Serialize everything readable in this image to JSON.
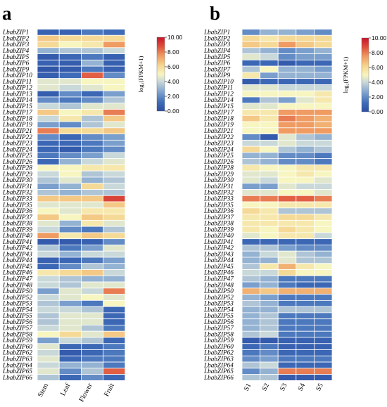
{
  "chart_data": [
    {
      "type": "heatmap",
      "panel_label": "a",
      "columns": [
        "Stem",
        "Leaf",
        "Flower",
        "Fruit"
      ],
      "rows": [
        "LbabZIP1",
        "LbabZIP2",
        "LbabZIP3",
        "LbabZIP4",
        "LbabZIP5",
        "LbabZIP6",
        "LbabZIP9",
        "LbabZIP10",
        "LbabZIP11",
        "LbabZIP12",
        "LbabZIP13",
        "LbabZIP14",
        "LbabZIP15",
        "LbabZIP17",
        "LbabZIP18",
        "LbabZIP19",
        "LbabZIP21",
        "LbabZIP22",
        "LbabZIP23",
        "LbabZIP24",
        "LbabZIP25",
        "LbabZIP26",
        "LbabZIP28",
        "LbabZIP29",
        "LbabZIP30",
        "LbabZIP31",
        "LbabZIP32",
        "LbabZIP33",
        "LbabZIP35",
        "LbabZIP36",
        "LbabZIP37",
        "LbabZIP38",
        "LbabZIP39",
        "LbabZIP40",
        "LbabZIP41",
        "LbabZIP42",
        "LbabZIP43",
        "LbabZIP44",
        "LbabZIP45",
        "LbabZIP46",
        "LbabZIP47",
        "LbabZIP48",
        "LbabZIP50",
        "LbabZIP52",
        "LbabZIP53",
        "LbabZIP54",
        "LbabZIP55",
        "LbabZIP56",
        "LbabZIP57",
        "LbabZIP58",
        "LbabZIP59",
        "LbabZIP60",
        "LbabZIP62",
        "LbabZIP63",
        "LbabZIP64",
        "LbabZIP65",
        "LbabZIP66"
      ],
      "values": [
        [
          0.8,
          0.8,
          1.5,
          1.2
        ],
        [
          6.5,
          6.0,
          6.0,
          6.0
        ],
        [
          6.0,
          5.0,
          5.5,
          7.5
        ],
        [
          3.0,
          3.5,
          3.5,
          4.0
        ],
        [
          0.5,
          1.0,
          1.5,
          0.8
        ],
        [
          0.8,
          0.6,
          3.0,
          0.7
        ],
        [
          0.3,
          0.5,
          1.5,
          0.8
        ],
        [
          0.6,
          1.2,
          8.5,
          2.0
        ],
        [
          4.5,
          4.5,
          5.0,
          5.0
        ],
        [
          4.5,
          4.0,
          4.5,
          5.0
        ],
        [
          0.6,
          2.0,
          1.0,
          2.5
        ],
        [
          2.0,
          1.5,
          2.0,
          3.5
        ],
        [
          4.0,
          3.5,
          4.5,
          4.5
        ],
        [
          6.5,
          5.0,
          5.5,
          8.0
        ],
        [
          4.0,
          5.5,
          3.5,
          6.5
        ],
        [
          2.5,
          2.0,
          3.5,
          4.5
        ],
        [
          8.0,
          6.0,
          6.0,
          6.5
        ],
        [
          2.0,
          1.0,
          2.0,
          2.5
        ],
        [
          1.0,
          1.0,
          1.5,
          2.5
        ],
        [
          1.0,
          0.5,
          1.5,
          2.0
        ],
        [
          1.5,
          2.0,
          2.5,
          4.0
        ],
        [
          1.0,
          3.0,
          4.0,
          4.5
        ],
        [
          5.0,
          5.0,
          5.5,
          5.5
        ],
        [
          4.0,
          5.0,
          3.5,
          4.0
        ],
        [
          3.5,
          4.5,
          3.0,
          3.5
        ],
        [
          2.5,
          3.0,
          6.0,
          4.0
        ],
        [
          3.5,
          3.0,
          3.5,
          3.5
        ],
        [
          6.5,
          6.5,
          6.5,
          9.0
        ],
        [
          4.5,
          4.5,
          4.5,
          6.5
        ],
        [
          5.0,
          4.5,
          5.5,
          5.5
        ],
        [
          6.5,
          5.0,
          6.5,
          6.0
        ],
        [
          4.5,
          3.0,
          5.5,
          4.5
        ],
        [
          4.0,
          2.0,
          1.5,
          3.5
        ],
        [
          7.5,
          5.5,
          6.5,
          6.0
        ],
        [
          0.5,
          0.5,
          0.8,
          2.0
        ],
        [
          3.5,
          1.5,
          2.5,
          4.5
        ],
        [
          4.0,
          3.0,
          4.0,
          4.0
        ],
        [
          0.8,
          1.0,
          1.5,
          2.5
        ],
        [
          1.0,
          2.0,
          3.5,
          3.0
        ],
        [
          5.5,
          6.0,
          6.5,
          4.0
        ],
        [
          4.0,
          3.5,
          3.0,
          3.0
        ],
        [
          4.0,
          3.5,
          4.5,
          4.5
        ],
        [
          2.5,
          4.5,
          4.0,
          8.0
        ],
        [
          4.0,
          4.5,
          5.0,
          4.5
        ],
        [
          3.5,
          2.5,
          1.5,
          5.0
        ],
        [
          4.0,
          4.0,
          3.5,
          1.0
        ],
        [
          3.5,
          4.5,
          4.5,
          1.0
        ],
        [
          3.5,
          4.5,
          4.5,
          1.0
        ],
        [
          4.0,
          4.5,
          3.5,
          1.5
        ],
        [
          5.0,
          6.0,
          4.5,
          6.5
        ],
        [
          2.5,
          4.0,
          3.5,
          1.0
        ],
        [
          4.5,
          1.0,
          1.0,
          1.5
        ],
        [
          4.0,
          0.5,
          1.0,
          1.5
        ],
        [
          4.5,
          1.0,
          1.5,
          1.5
        ],
        [
          4.0,
          3.0,
          3.0,
          1.5
        ],
        [
          4.5,
          2.0,
          3.5,
          8.5
        ],
        [
          3.5,
          1.0,
          2.0,
          1.0
        ]
      ],
      "colorbar": {
        "title": "log₂(FPKM+1)",
        "min": 0,
        "max": 10,
        "ticks": [
          "0.00",
          "2.00",
          "4.00",
          "6.00",
          "8.00",
          "10.00"
        ],
        "colors": [
          "#2d4fa3",
          "#f7f5c0",
          "#c8152a"
        ]
      }
    },
    {
      "type": "heatmap",
      "panel_label": "b",
      "columns": [
        "S1",
        "S2",
        "S3",
        "S4",
        "S5"
      ],
      "rows": [
        "LbabZIP1",
        "LbabZIP2",
        "LbabZIP3",
        "LbabZIP4",
        "LbabZIP5",
        "LbabZIP6",
        "LbabZIP7",
        "LbabZIP9",
        "LbabZIP10",
        "LbabZIP11",
        "LbabZIP12",
        "LbabZIP14",
        "LbabZIP15",
        "LbabZIP17",
        "LbabZIP18",
        "LbabZIP19",
        "LbabZIP21",
        "LbabZIP22",
        "LbabZIP23",
        "LbabZIP24",
        "LbabZIP25",
        "LbabZIP26",
        "LbabZIP28",
        "LbabZIP29",
        "LbabZIP30",
        "LbabZIP31",
        "LbabZIP32",
        "LbabZIP33",
        "LbabZIP35",
        "LbabZIP36",
        "LbabZIP37",
        "LbabZIP38",
        "LbabZIP39",
        "LbabZIP40",
        "LbabZIP41",
        "LbabZIP42",
        "LbabZIP43",
        "LbabZIP44",
        "LbabZIP45",
        "LbabZIP46",
        "LbabZIP47",
        "LbabZIP48",
        "LbabZIP50",
        "LbabZIP52",
        "LbabZIP53",
        "LbabZIP54",
        "LbabZIP55",
        "LbabZIP56",
        "LbabZIP57",
        "LbabZIP58",
        "LbabZIP59",
        "LbabZIP60",
        "LbabZIP62",
        "LbabZIP63",
        "LbabZIP64",
        "LbabZIP65",
        "LbabZIP66"
      ],
      "values": [
        [
          2.0,
          3.0,
          3.0,
          2.5,
          2.0
        ],
        [
          6.0,
          5.5,
          6.0,
          6.0,
          6.0
        ],
        [
          6.5,
          6.0,
          7.5,
          6.5,
          6.0
        ],
        [
          3.5,
          3.0,
          2.0,
          2.5,
          3.0
        ],
        [
          4.5,
          4.0,
          2.0,
          2.5,
          2.5
        ],
        [
          1.0,
          1.0,
          0.5,
          1.0,
          1.0
        ],
        [
          3.5,
          5.0,
          3.0,
          3.0,
          2.5
        ],
        [
          5.5,
          2.5,
          3.0,
          3.0,
          3.0
        ],
        [
          0.5,
          1.0,
          1.0,
          1.0,
          1.0
        ],
        [
          4.5,
          4.5,
          4.0,
          4.0,
          4.0
        ],
        [
          5.0,
          5.0,
          5.0,
          5.0,
          5.5
        ],
        [
          1.5,
          3.5,
          2.5,
          4.5,
          5.5
        ],
        [
          4.5,
          4.5,
          5.0,
          5.0,
          5.0
        ],
        [
          5.5,
          5.5,
          7.5,
          7.5,
          7.5
        ],
        [
          6.5,
          5.5,
          8.0,
          7.5,
          7.0
        ],
        [
          5.0,
          5.0,
          7.5,
          7.5,
          7.0
        ],
        [
          5.0,
          5.0,
          7.5,
          7.5,
          7.5
        ],
        [
          2.0,
          0.5,
          4.5,
          3.5,
          3.0
        ],
        [
          4.0,
          4.0,
          4.5,
          4.0,
          4.0
        ],
        [
          6.0,
          5.0,
          3.5,
          3.0,
          3.5
        ],
        [
          3.0,
          3.0,
          2.0,
          2.0,
          1.5
        ],
        [
          3.5,
          3.0,
          2.0,
          2.0,
          1.5
        ],
        [
          5.5,
          5.0,
          5.0,
          5.5,
          5.5
        ],
        [
          4.5,
          4.5,
          5.0,
          5.5,
          5.0
        ],
        [
          4.5,
          4.0,
          5.0,
          5.0,
          4.5
        ],
        [
          2.5,
          2.5,
          4.5,
          4.0,
          4.0
        ],
        [
          4.5,
          4.5,
          5.0,
          5.0,
          4.5
        ],
        [
          8.0,
          8.0,
          8.5,
          8.5,
          8.0
        ],
        [
          5.0,
          5.0,
          5.5,
          5.5,
          5.5
        ],
        [
          6.0,
          5.5,
          3.5,
          3.5,
          3.5
        ],
        [
          5.5,
          5.5,
          6.0,
          6.0,
          5.5
        ],
        [
          5.5,
          5.5,
          5.5,
          5.5,
          5.0
        ],
        [
          5.5,
          5.0,
          6.0,
          5.5,
          5.0
        ],
        [
          4.5,
          5.0,
          5.5,
          5.5,
          4.0
        ],
        [
          1.0,
          1.0,
          1.0,
          1.0,
          1.0
        ],
        [
          3.5,
          3.5,
          2.5,
          2.0,
          2.0
        ],
        [
          3.0,
          4.0,
          4.5,
          3.5,
          3.0
        ],
        [
          3.0,
          3.0,
          4.5,
          3.5,
          3.5
        ],
        [
          3.5,
          5.5,
          7.0,
          5.5,
          5.0
        ],
        [
          4.0,
          4.0,
          6.0,
          5.0,
          5.0
        ],
        [
          3.5,
          3.0,
          1.5,
          1.5,
          1.5
        ],
        [
          2.5,
          3.0,
          1.5,
          1.0,
          1.0
        ],
        [
          7.0,
          6.5,
          7.0,
          7.0,
          7.0
        ],
        [
          3.0,
          2.5,
          1.5,
          1.5,
          1.5
        ],
        [
          3.5,
          3.0,
          1.5,
          1.5,
          1.5
        ],
        [
          3.0,
          3.0,
          3.5,
          3.5,
          3.5
        ],
        [
          3.0,
          3.5,
          1.5,
          1.5,
          1.5
        ],
        [
          3.0,
          3.5,
          1.5,
          1.5,
          1.5
        ],
        [
          3.0,
          3.5,
          1.5,
          1.5,
          1.5
        ],
        [
          3.5,
          4.0,
          1.5,
          1.5,
          1.5
        ],
        [
          0.5,
          0.5,
          0.8,
          0.8,
          0.8
        ],
        [
          1.0,
          1.5,
          0.8,
          0.8,
          0.8
        ],
        [
          1.5,
          2.0,
          1.0,
          1.0,
          1.0
        ],
        [
          2.0,
          2.5,
          1.5,
          1.5,
          1.5
        ],
        [
          3.5,
          4.0,
          1.0,
          1.0,
          1.0
        ],
        [
          2.0,
          3.0,
          8.0,
          8.0,
          8.0
        ],
        [
          3.5,
          3.5,
          0.5,
          0.5,
          0.5
        ]
      ],
      "colorbar": {
        "title": "log₂(FPKM+1)",
        "min": 0,
        "max": 10,
        "ticks": [
          "0.00",
          "2.00",
          "4.00",
          "6.00",
          "8.00",
          "10.00"
        ],
        "colors": [
          "#2d4fa3",
          "#f7f5c0",
          "#c8152a"
        ]
      }
    }
  ]
}
